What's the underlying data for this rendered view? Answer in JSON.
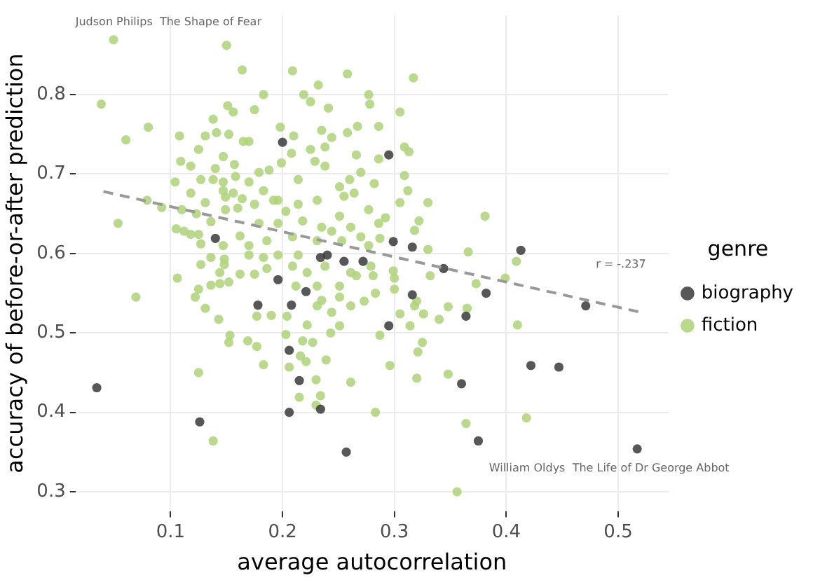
{
  "chart_data": {
    "type": "scatter",
    "xlabel": "average autocorrelation",
    "ylabel": "accuracy of before-or-after prediction",
    "legend_title": "genre",
    "legend": "right",
    "grid": true,
    "marker": "circle",
    "xlim": [
      0.015,
      0.545
    ],
    "xticks": [
      0.1,
      0.2,
      0.3,
      0.4,
      0.5
    ],
    "ylim": [
      0.275,
      0.9
    ],
    "yticks": [
      0.3,
      0.4,
      0.5,
      0.6,
      0.7,
      0.8
    ],
    "annotations": [
      {
        "text": "Judson Philips  The Shape of Fear",
        "x": 0.049,
        "y": 0.869
      },
      "r = -.237",
      {
        "text": "William Oldys  The Life of Dr George Abbot",
        "x": 0.517,
        "y": 0.354
      }
    ],
    "series": [
      {
        "name": "biography",
        "type": "scatter",
        "color": "#3a3a3a",
        "x": [
          0.034,
          0.126,
          0.14,
          0.2,
          0.295,
          0.299,
          0.316,
          0.234,
          0.24,
          0.255,
          0.272,
          0.196,
          0.221,
          0.178,
          0.208,
          0.316,
          0.295,
          0.206,
          0.215,
          0.234,
          0.206,
          0.257,
          0.36,
          0.344,
          0.382,
          0.364,
          0.471,
          0.422,
          0.447,
          0.375,
          0.517,
          0.413
        ],
        "values": [
          0.431,
          0.388,
          0.619,
          0.74,
          0.724,
          0.615,
          0.608,
          0.595,
          0.598,
          0.59,
          0.59,
          0.567,
          0.552,
          0.535,
          0.535,
          0.548,
          0.509,
          0.478,
          0.44,
          0.404,
          0.4,
          0.35,
          0.436,
          0.581,
          0.55,
          0.521,
          0.534,
          0.459,
          0.457,
          0.364,
          0.354,
          0.604
        ]
      },
      {
        "name": "fiction",
        "type": "scatter",
        "color": "#aed27a",
        "x": [
          0.381,
          0.366,
          0.409,
          0.049,
          0.038,
          0.06,
          0.08,
          0.053,
          0.15,
          0.164,
          0.069,
          0.125,
          0.138,
          0.283,
          0.356,
          0.261,
          0.296,
          0.32,
          0.348,
          0.364,
          0.418,
          0.41,
          0.373,
          0.399,
          0.365,
          0.209,
          0.258,
          0.317,
          0.232,
          0.183,
          0.219,
          0.277,
          0.278,
          0.175,
          0.225,
          0.241,
          0.305,
          0.198,
          0.235,
          0.258,
          0.267,
          0.286,
          0.21,
          0.244,
          0.309,
          0.313,
          0.225,
          0.238,
          0.266,
          0.286,
          0.208,
          0.17,
          0.108,
          0.131,
          0.125,
          0.138,
          0.141,
          0.152,
          0.151,
          0.156,
          0.165,
          0.109,
          0.118,
          0.104,
          0.127,
          0.14,
          0.147,
          0.157,
          0.118,
          0.138,
          0.147,
          0.158,
          0.131,
          0.147,
          0.149,
          0.156,
          0.164,
          0.079,
          0.092,
          0.11,
          0.123,
          0.136,
          0.149,
          0.16,
          0.105,
          0.112,
          0.118,
          0.125,
          0.127,
          0.136,
          0.148,
          0.147,
          0.162,
          0.17,
          0.106,
          0.125,
          0.122,
          0.131,
          0.143,
          0.136,
          0.144,
          0.152,
          0.127,
          0.148,
          0.144,
          0.162,
          0.153,
          0.152,
          0.169,
          0.177,
          0.183,
          0.203,
          0.206,
          0.221,
          0.215,
          0.23,
          0.234,
          0.23,
          0.239,
          0.218,
          0.227,
          0.216,
          0.243,
          0.251,
          0.222,
          0.204,
          0.19,
          0.177,
          0.287,
          0.325,
          0.321,
          0.314,
          0.305,
          0.326,
          0.34,
          0.348,
          0.32,
          0.3,
          0.283,
          0.261,
          0.273,
          0.251,
          0.244,
          0.231,
          0.235,
          0.212,
          0.231,
          0.251,
          0.266,
          0.281,
          0.3,
          0.332,
          0.318,
          0.17,
          0.179,
          0.188,
          0.199,
          0.183,
          0.196,
          0.214,
          0.229,
          0.238,
          0.251,
          0.26,
          0.27,
          0.282,
          0.255,
          0.264,
          0.309,
          0.312,
          0.305,
          0.33,
          0.322,
          0.318,
          0.292,
          0.286,
          0.277,
          0.231,
          0.214,
          0.203,
          0.192,
          0.175,
          0.179,
          0.196,
          0.218,
          0.235,
          0.251,
          0.261,
          0.27,
          0.253,
          0.231,
          0.209,
          0.186,
          0.17,
          0.244,
          0.277,
          0.287,
          0.33,
          0.214,
          0.183,
          0.196,
          0.175,
          0.186,
          0.209,
          0.222,
          0.238,
          0.261,
          0.279,
          0.299
        ],
        "values": [
          0.647,
          0.602,
          0.59,
          0.869,
          0.788,
          0.743,
          0.759,
          0.638,
          0.862,
          0.831,
          0.545,
          0.45,
          0.364,
          0.4,
          0.3,
          0.438,
          0.459,
          0.443,
          0.448,
          0.386,
          0.393,
          0.51,
          0.562,
          0.569,
          0.531,
          0.83,
          0.826,
          0.821,
          0.812,
          0.8,
          0.8,
          0.8,
          0.788,
          0.781,
          0.791,
          0.783,
          0.778,
          0.759,
          0.755,
          0.752,
          0.76,
          0.76,
          0.748,
          0.746,
          0.734,
          0.728,
          0.731,
          0.734,
          0.724,
          0.719,
          0.726,
          0.741,
          0.748,
          0.748,
          0.731,
          0.769,
          0.752,
          0.75,
          0.786,
          0.778,
          0.741,
          0.716,
          0.71,
          0.69,
          0.693,
          0.707,
          0.722,
          0.712,
          0.676,
          0.693,
          0.69,
          0.697,
          0.664,
          0.679,
          0.671,
          0.676,
          0.669,
          0.667,
          0.658,
          0.655,
          0.65,
          0.64,
          0.655,
          0.657,
          0.631,
          0.628,
          0.624,
          0.624,
          0.612,
          0.595,
          0.593,
          0.61,
          0.622,
          0.598,
          0.569,
          0.555,
          0.545,
          0.531,
          0.517,
          0.56,
          0.562,
          0.564,
          0.586,
          0.586,
          0.576,
          0.574,
          0.497,
          0.488,
          0.49,
          0.483,
          0.46,
          0.498,
          0.457,
          0.464,
          0.419,
          0.441,
          0.421,
          0.409,
          0.466,
          0.49,
          0.488,
          0.471,
          0.5,
          0.509,
          0.51,
          0.521,
          0.522,
          0.521,
          0.497,
          0.488,
          0.476,
          0.509,
          0.524,
          0.524,
          0.517,
          0.533,
          0.54,
          0.555,
          0.55,
          0.534,
          0.54,
          0.545,
          0.526,
          0.534,
          0.541,
          0.559,
          0.559,
          0.559,
          0.572,
          0.572,
          0.569,
          0.572,
          0.534,
          0.69,
          0.702,
          0.705,
          0.714,
          0.679,
          0.667,
          0.693,
          0.716,
          0.71,
          0.684,
          0.693,
          0.702,
          0.688,
          0.672,
          0.676,
          0.698,
          0.679,
          0.664,
          0.664,
          0.641,
          0.629,
          0.645,
          0.638,
          0.655,
          0.667,
          0.662,
          0.653,
          0.667,
          0.662,
          0.638,
          0.638,
          0.641,
          0.633,
          0.647,
          0.633,
          0.621,
          0.616,
          0.616,
          0.621,
          0.616,
          0.61,
          0.628,
          0.61,
          0.619,
          0.605,
          0.598,
          0.595,
          0.598,
          0.574,
          0.581,
          0.584,
          0.576,
          0.584,
          0.576,
          0.584,
          0.578
        ]
      },
      {
        "type": "line",
        "color": "#999999",
        "line_style": "dashed",
        "marker": "none",
        "x": [
          0.04,
          0.52
        ],
        "values": [
          0.678,
          0.526
        ]
      }
    ]
  }
}
